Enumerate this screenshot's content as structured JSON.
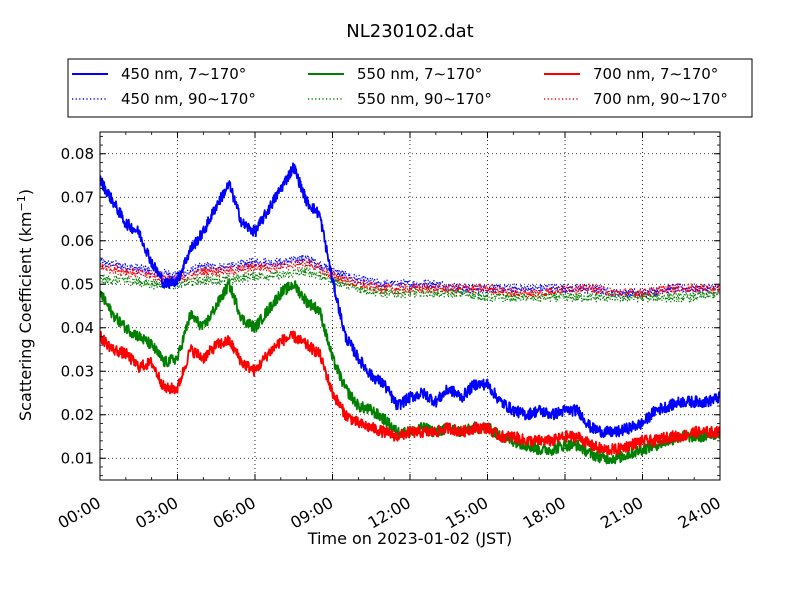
{
  "chart_data": {
    "type": "line",
    "title": "NL230102.dat",
    "xlabel": "Time on 2023-01-02 (JST)",
    "ylabel_main": "Scattering Coefficient (km",
    "ylabel_sup": "−1",
    "ylabel_close": ")",
    "xlim": [
      0,
      24
    ],
    "ylim": [
      0.005,
      0.085
    ],
    "grid": true,
    "legend_position": "top",
    "x_ticks": [
      {
        "value": 0,
        "label": "00:00"
      },
      {
        "value": 3,
        "label": "03:00"
      },
      {
        "value": 6,
        "label": "06:00"
      },
      {
        "value": 9,
        "label": "09:00"
      },
      {
        "value": 12,
        "label": "12:00"
      },
      {
        "value": 15,
        "label": "15:00"
      },
      {
        "value": 18,
        "label": "18:00"
      },
      {
        "value": 21,
        "label": "21:00"
      },
      {
        "value": 24,
        "label": "24:00"
      }
    ],
    "y_ticks": [
      {
        "value": 0.01,
        "label": "0.01"
      },
      {
        "value": 0.02,
        "label": "0.02"
      },
      {
        "value": 0.03,
        "label": "0.03"
      },
      {
        "value": 0.04,
        "label": "0.04"
      },
      {
        "value": 0.05,
        "label": "0.05"
      },
      {
        "value": 0.06,
        "label": "0.06"
      },
      {
        "value": 0.07,
        "label": "0.07"
      },
      {
        "value": 0.08,
        "label": "0.08"
      }
    ],
    "series": [
      {
        "name": "450 nm, 7∼170°",
        "color": "#0000ff",
        "style": "solid",
        "x": [
          0,
          0.5,
          1,
          1.5,
          2,
          2.5,
          3,
          3.5,
          4,
          4.5,
          5,
          5.5,
          6,
          6.5,
          7,
          7.5,
          8,
          8.5,
          9,
          9.5,
          10,
          10.5,
          11,
          11.5,
          12,
          12.5,
          13,
          13.5,
          14,
          14.5,
          15,
          15.5,
          16,
          16.5,
          17,
          17.5,
          18,
          18.5,
          19,
          19.5,
          20,
          20.5,
          21,
          21.5,
          22,
          22.5,
          23,
          23.5,
          24
        ],
        "y": [
          0.074,
          0.069,
          0.064,
          0.062,
          0.055,
          0.05,
          0.051,
          0.058,
          0.062,
          0.068,
          0.073,
          0.064,
          0.062,
          0.067,
          0.072,
          0.077,
          0.069,
          0.066,
          0.051,
          0.038,
          0.033,
          0.029,
          0.027,
          0.022,
          0.024,
          0.025,
          0.023,
          0.026,
          0.024,
          0.027,
          0.027,
          0.023,
          0.021,
          0.02,
          0.021,
          0.02,
          0.021,
          0.021,
          0.017,
          0.016,
          0.016,
          0.017,
          0.018,
          0.021,
          0.022,
          0.023,
          0.023,
          0.023,
          0.024
        ]
      },
      {
        "name": "450 nm, 90∼170°",
        "color": "#0000ff",
        "style": "dotted",
        "x": [
          0,
          1,
          2,
          3,
          4,
          5,
          6,
          7,
          8,
          9,
          10,
          11,
          12,
          13,
          14,
          15,
          16,
          17,
          18,
          19,
          20,
          21,
          22,
          23,
          24
        ],
        "y": [
          0.055,
          0.054,
          0.053,
          0.052,
          0.054,
          0.054,
          0.055,
          0.055,
          0.056,
          0.053,
          0.051,
          0.05,
          0.05,
          0.05,
          0.049,
          0.049,
          0.049,
          0.049,
          0.049,
          0.049,
          0.048,
          0.048,
          0.049,
          0.049,
          0.049
        ]
      },
      {
        "name": "550 nm, 7∼170°",
        "color": "#008000",
        "style": "solid",
        "x": [
          0,
          0.5,
          1,
          1.5,
          2,
          2.5,
          3,
          3.5,
          4,
          4.5,
          5,
          5.5,
          6,
          6.5,
          7,
          7.5,
          8,
          8.5,
          9,
          9.5,
          10,
          10.5,
          11,
          11.5,
          12,
          12.5,
          13,
          13.5,
          14,
          14.5,
          15,
          15.5,
          16,
          16.5,
          17,
          17.5,
          18,
          18.5,
          19,
          19.5,
          20,
          20.5,
          21,
          21.5,
          22,
          22.5,
          23,
          23.5,
          24
        ],
        "y": [
          0.048,
          0.043,
          0.04,
          0.038,
          0.036,
          0.032,
          0.033,
          0.043,
          0.04,
          0.045,
          0.05,
          0.042,
          0.04,
          0.044,
          0.048,
          0.05,
          0.046,
          0.044,
          0.033,
          0.026,
          0.022,
          0.021,
          0.019,
          0.016,
          0.016,
          0.017,
          0.016,
          0.017,
          0.016,
          0.017,
          0.017,
          0.015,
          0.014,
          0.013,
          0.012,
          0.012,
          0.013,
          0.013,
          0.011,
          0.01,
          0.01,
          0.011,
          0.012,
          0.013,
          0.014,
          0.015,
          0.015,
          0.015,
          0.016
        ]
      },
      {
        "name": "550 nm, 90∼170°",
        "color": "#008000",
        "style": "dotted",
        "x": [
          0,
          1,
          2,
          3,
          4,
          5,
          6,
          7,
          8,
          9,
          10,
          11,
          12,
          13,
          14,
          15,
          16,
          17,
          18,
          19,
          20,
          21,
          22,
          23,
          24
        ],
        "y": [
          0.051,
          0.051,
          0.05,
          0.05,
          0.051,
          0.051,
          0.052,
          0.052,
          0.053,
          0.051,
          0.049,
          0.048,
          0.048,
          0.048,
          0.048,
          0.047,
          0.047,
          0.047,
          0.047,
          0.047,
          0.047,
          0.047,
          0.047,
          0.047,
          0.048
        ]
      },
      {
        "name": "700 nm, 7∼170°",
        "color": "#ff0000",
        "style": "solid",
        "x": [
          0,
          0.5,
          1,
          1.5,
          2,
          2.5,
          3,
          3.5,
          4,
          4.5,
          5,
          5.5,
          6,
          6.5,
          7,
          7.5,
          8,
          8.5,
          9,
          9.5,
          10,
          10.5,
          11,
          11.5,
          12,
          12.5,
          13,
          13.5,
          14,
          14.5,
          15,
          15.5,
          16,
          16.5,
          17,
          17.5,
          18,
          18.5,
          19,
          19.5,
          20,
          20.5,
          21,
          21.5,
          22,
          22.5,
          23,
          23.5,
          24
        ],
        "y": [
          0.038,
          0.035,
          0.034,
          0.031,
          0.032,
          0.026,
          0.026,
          0.035,
          0.033,
          0.036,
          0.037,
          0.032,
          0.03,
          0.034,
          0.037,
          0.038,
          0.036,
          0.034,
          0.025,
          0.02,
          0.018,
          0.017,
          0.016,
          0.015,
          0.016,
          0.016,
          0.016,
          0.017,
          0.016,
          0.017,
          0.017,
          0.015,
          0.015,
          0.014,
          0.014,
          0.014,
          0.015,
          0.015,
          0.013,
          0.012,
          0.012,
          0.013,
          0.014,
          0.014,
          0.015,
          0.015,
          0.016,
          0.016,
          0.016
        ]
      },
      {
        "name": "700 nm, 90∼170°",
        "color": "#ff0000",
        "style": "dotted",
        "x": [
          0,
          1,
          2,
          3,
          4,
          5,
          6,
          7,
          8,
          9,
          10,
          11,
          12,
          13,
          14,
          15,
          16,
          17,
          18,
          19,
          20,
          21,
          22,
          23,
          24
        ],
        "y": [
          0.054,
          0.053,
          0.052,
          0.051,
          0.053,
          0.053,
          0.054,
          0.054,
          0.055,
          0.052,
          0.05,
          0.049,
          0.049,
          0.049,
          0.049,
          0.049,
          0.048,
          0.048,
          0.049,
          0.049,
          0.048,
          0.048,
          0.049,
          0.049,
          0.049
        ]
      }
    ]
  }
}
